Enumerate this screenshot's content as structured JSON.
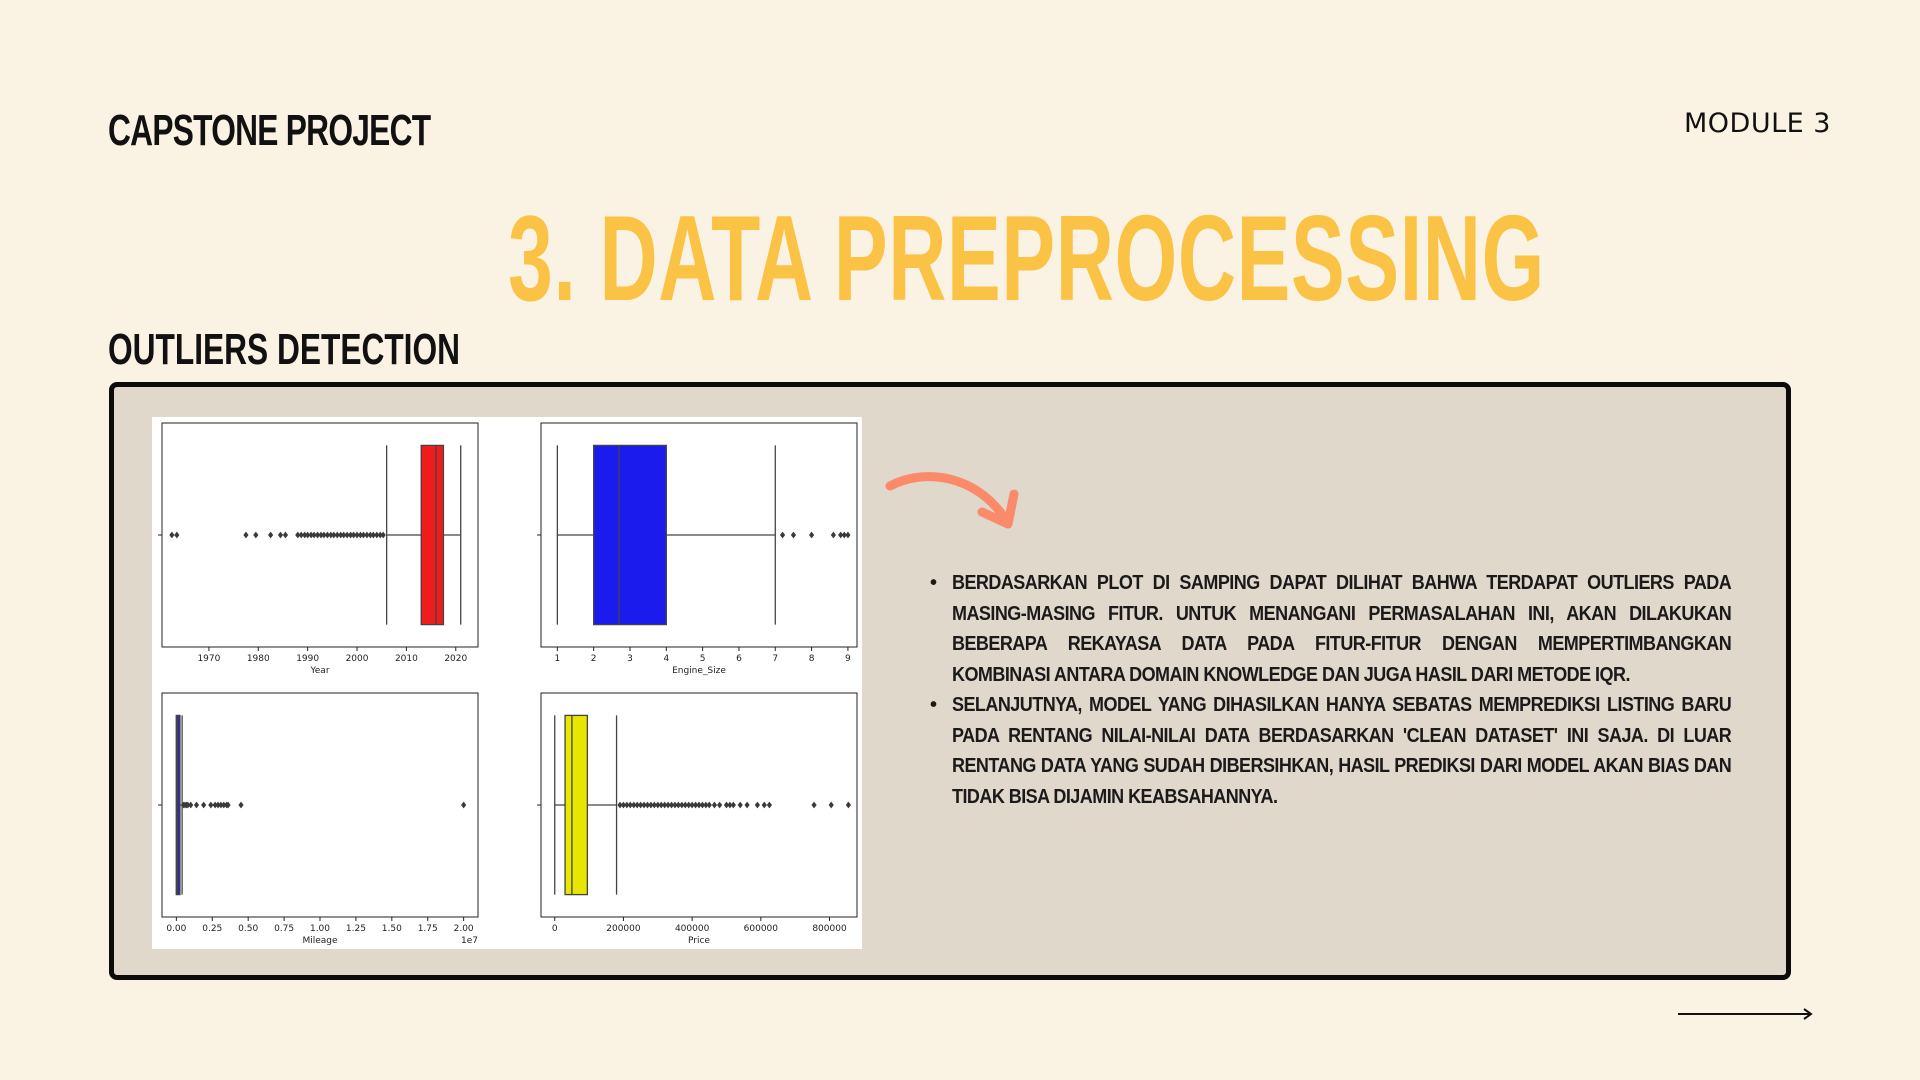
{
  "header": {
    "brand": "CAPSTONE PROJECT",
    "module": "MODULE 3",
    "title": "3. DATA PREPROCESSING",
    "subtitle": "OUTLIERS DETECTION"
  },
  "notes": [
    "Berdasarkan plot di samping dapat dilihat bahwa terdapat outliers pada masing-masing fitur. Untuk menangani permasalahan ini, akan dilakukan beberapa rekayasa data pada fitur-fitur dengan mempertimbangkan kombinasi antara domain knowledge dan juga hasil dari metode IQR.",
    "Selanjutnya, model yang dihasilkan hanya sebatas memprediksi listing baru pada rentang nilai-nilai data berdasarkan 'clean dataset' ini saja. Di luar rentang data yang sudah dibersihkan, hasil prediksi dari model akan bias dan tidak bisa dijamin keabsahannya."
  ],
  "colors": {
    "background": "#faf3e3",
    "panel": "#e0d8ca",
    "title": "#fbc346",
    "arrow": "#fa8a6a"
  },
  "icons": {
    "curved_arrow": "curved-arrow-icon",
    "next": "long-right-arrow-icon"
  },
  "chart_data": [
    {
      "type": "box",
      "xlabel": "Year",
      "color": "#ee1c1c",
      "ticks": [
        1970,
        1980,
        1990,
        2000,
        2010,
        2020
      ],
      "xlim": [
        1960.5,
        2024.5
      ],
      "whisker_low": 2006,
      "q1": 2013,
      "median": 2016,
      "q3": 2017.5,
      "whisker_high": 2021,
      "outliers": [
        1962.5,
        1963.5,
        1977.5,
        1979.5,
        1982.5,
        1984.5,
        1985.5,
        1988,
        1988.7,
        1989.4,
        1990,
        1990.7,
        1991.3,
        1992,
        1992.7,
        1993.3,
        1994,
        1994.7,
        1995.3,
        1996,
        1996.7,
        1997.3,
        1998,
        1998.7,
        1999.3,
        2000,
        2000.7,
        2001.3,
        2002,
        2002.7,
        2003.3,
        2004,
        2004.7,
        2005.3
      ]
    },
    {
      "type": "box",
      "xlabel": "Engine_Size",
      "color": "#1b1bee",
      "ticks": [
        1,
        2,
        3,
        4,
        5,
        6,
        7,
        8,
        9
      ],
      "xlim": [
        0.55,
        9.25
      ],
      "whisker_low": 1.0,
      "q1": 2.0,
      "median": 2.7,
      "q3": 4.0,
      "whisker_high": 7.0,
      "outliers": [
        7.2,
        7.5,
        8.0,
        8.6,
        8.8,
        8.9,
        9.0
      ]
    },
    {
      "type": "box",
      "xlabel": "Mileage",
      "color": "#1b1bee",
      "ticks": [
        "0.00",
        "0.25",
        "0.50",
        "0.75",
        "1.00",
        "1.25",
        "1.50",
        "1.75",
        "2.00"
      ],
      "tick_values": [
        0,
        0.25,
        0.5,
        0.75,
        1,
        1.25,
        1.5,
        1.75,
        2
      ],
      "offset_label": "1e7",
      "xlim": [
        -0.1,
        2.1
      ],
      "whisker_low": 0.0,
      "q1": 0.0,
      "median": 0.01,
      "q3": 0.025,
      "whisker_high": 0.04,
      "outliers": [
        0.05,
        0.06,
        0.07,
        0.08,
        0.1,
        0.14,
        0.19,
        0.24,
        0.27,
        0.29,
        0.31,
        0.33,
        0.35,
        0.36,
        0.45,
        2.0
      ]
    },
    {
      "type": "box",
      "xlabel": "Price",
      "color": "#e6e600",
      "ticks": [
        "0",
        "200000",
        "400000",
        "600000",
        "800000"
      ],
      "tick_values": [
        0,
        200000,
        400000,
        600000,
        800000
      ],
      "xlim": [
        -40000,
        880000
      ],
      "whisker_low": 0,
      "q1": 30000,
      "median": 50000,
      "q3": 95000,
      "whisker_high": 180000,
      "outliers": [
        190000,
        200000,
        210000,
        220000,
        230000,
        240000,
        250000,
        260000,
        270000,
        280000,
        290000,
        300000,
        310000,
        320000,
        330000,
        340000,
        350000,
        360000,
        370000,
        380000,
        390000,
        400000,
        410000,
        420000,
        430000,
        440000,
        450000,
        465000,
        480000,
        500000,
        510000,
        520000,
        540000,
        560000,
        590000,
        610000,
        625000,
        755000,
        805000,
        855000
      ]
    }
  ]
}
